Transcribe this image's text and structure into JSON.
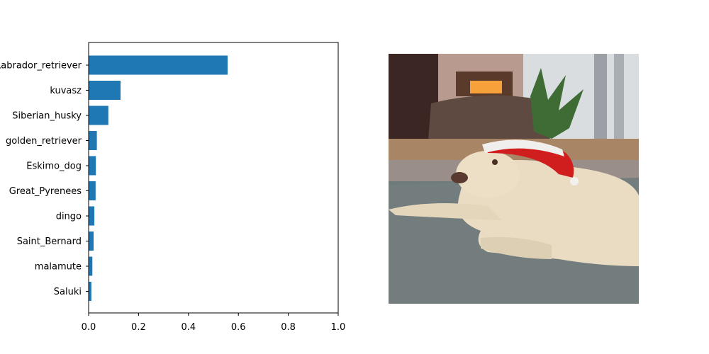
{
  "chart_data": {
    "type": "bar",
    "orientation": "horizontal",
    "categories": [
      "Labrador_retriever",
      "kuvasz",
      "Siberian_husky",
      "golden_retriever",
      "Eskimo_dog",
      "Great_Pyrenees",
      "dingo",
      "Saint_Bernard",
      "malamute",
      "Saluki"
    ],
    "values": [
      0.557,
      0.128,
      0.079,
      0.033,
      0.029,
      0.028,
      0.023,
      0.02,
      0.015,
      0.011
    ],
    "xlim": [
      0,
      1.0
    ],
    "xticks": [
      "0.0",
      "0.2",
      "0.4",
      "0.6",
      "0.8",
      "1.0"
    ],
    "title": "",
    "xlabel": "",
    "ylabel": "",
    "bar_color": "#1f77b4",
    "grid": false
  },
  "image_panel": {
    "icon": "dog-photo-icon"
  }
}
